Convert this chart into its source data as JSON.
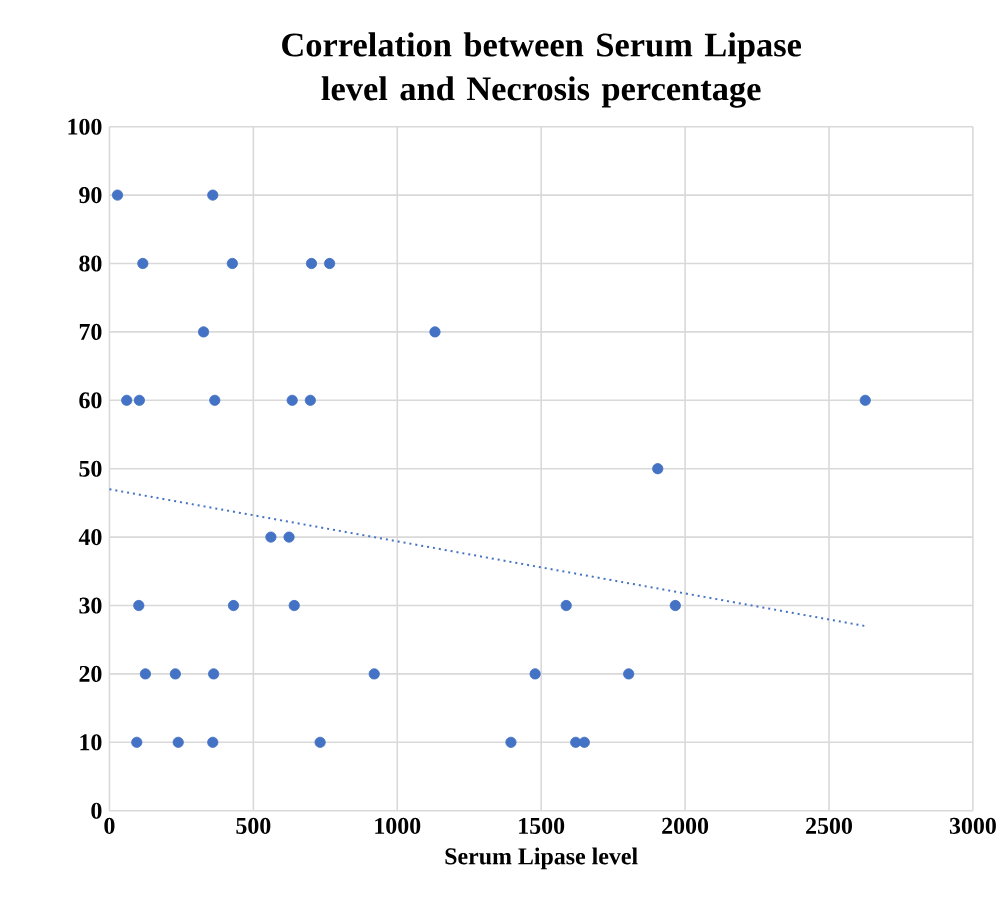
{
  "chart_data": {
    "type": "scatter",
    "title": "Correlation  between Serum Lipase level and Necrosis percentage",
    "xlabel": "Serum Lipase level",
    "xlim": [
      0,
      3000
    ],
    "xticks": [
      0,
      500,
      1000,
      1500,
      2000,
      2500,
      3000
    ],
    "ylim": [
      0,
      100
    ],
    "yticks": [
      0,
      10,
      20,
      30,
      40,
      50,
      60,
      70,
      80,
      90,
      100
    ],
    "grid": true,
    "series": [
      {
        "type": "scatter",
        "color": "#4472c4",
        "marker": "circle",
        "x": [
          28,
          359,
          116,
          427,
          702,
          765,
          327,
          1131,
          60,
          104,
          366,
          635,
          698,
          2626,
          1905,
          561,
          624,
          102,
          431,
          642,
          1587,
          1966,
          125,
          229,
          362,
          920,
          1479,
          1804,
          95,
          239,
          359,
          732,
          1395,
          1620,
          1650
        ],
        "values": [
          90,
          90,
          80,
          80,
          80,
          80,
          70,
          70,
          60,
          60,
          60,
          60,
          60,
          60,
          50,
          40,
          40,
          30,
          30,
          30,
          30,
          30,
          20,
          20,
          20,
          20,
          20,
          20,
          10,
          10,
          10,
          10,
          10,
          10,
          10
        ]
      },
      {
        "type": "line",
        "color": "#4472c4",
        "line_style": "dotted",
        "marker": "none",
        "x": [
          0,
          2626
        ],
        "values": [
          47,
          27
        ]
      }
    ]
  }
}
